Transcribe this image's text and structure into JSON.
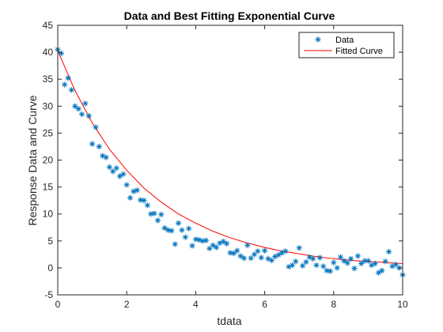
{
  "chart_data": {
    "type": "scatter",
    "title": "Data and Best Fitting Exponential Curve",
    "xlabel": "tdata",
    "ylabel": "Response Data and Curve",
    "xlim": [
      0,
      10
    ],
    "ylim": [
      -5,
      45
    ],
    "xticks": [
      0,
      2,
      4,
      6,
      8,
      10
    ],
    "yticks": [
      -5,
      0,
      5,
      10,
      15,
      20,
      25,
      30,
      35,
      40,
      45
    ],
    "grid": false,
    "legend_position": "top-right",
    "series": [
      {
        "name": "Data",
        "marker": "asterisk",
        "color": "#0072BD",
        "x": [
          0.0,
          0.1,
          0.2,
          0.3,
          0.4,
          0.5,
          0.6,
          0.7,
          0.8,
          0.9,
          1.0,
          1.1,
          1.2,
          1.3,
          1.4,
          1.5,
          1.6,
          1.7,
          1.8,
          1.9,
          2.0,
          2.1,
          2.2,
          2.3,
          2.4,
          2.5,
          2.6,
          2.7,
          2.8,
          2.9,
          3.0,
          3.1,
          3.2,
          3.3,
          3.4,
          3.5,
          3.6,
          3.7,
          3.8,
          3.9,
          4.0,
          4.1,
          4.2,
          4.3,
          4.4,
          4.5,
          4.6,
          4.7,
          4.8,
          4.9,
          5.0,
          5.1,
          5.2,
          5.3,
          5.4,
          5.5,
          5.6,
          5.7,
          5.8,
          5.9,
          6.0,
          6.1,
          6.2,
          6.3,
          6.4,
          6.5,
          6.6,
          6.7,
          6.8,
          6.9,
          7.0,
          7.1,
          7.2,
          7.3,
          7.4,
          7.5,
          7.6,
          7.7,
          7.8,
          7.9,
          8.0,
          8.1,
          8.2,
          8.3,
          8.4,
          8.5,
          8.6,
          8.7,
          8.8,
          8.9,
          9.0,
          9.1,
          9.2,
          9.3,
          9.4,
          9.5,
          9.6,
          9.7,
          9.8,
          9.9,
          10.0
        ],
        "y": [
          40.5,
          39.8,
          34.0,
          35.2,
          33.0,
          30.0,
          29.5,
          28.5,
          30.5,
          28.2,
          23.0,
          26.1,
          22.5,
          20.8,
          20.5,
          18.7,
          17.9,
          18.5,
          17.0,
          17.4,
          15.4,
          13.0,
          14.2,
          14.4,
          12.6,
          12.5,
          11.6,
          10.0,
          10.1,
          8.8,
          9.9,
          7.4,
          7.0,
          6.9,
          4.4,
          8.3,
          7.0,
          5.7,
          7.3,
          4.1,
          5.3,
          5.2,
          5.0,
          5.1,
          3.6,
          4.2,
          3.8,
          4.6,
          4.9,
          4.5,
          2.8,
          2.7,
          3.2,
          2.2,
          1.8,
          4.2,
          1.8,
          2.5,
          3.1,
          1.9,
          3.2,
          1.7,
          1.4,
          2.1,
          2.4,
          2.8,
          3.1,
          0.2,
          0.5,
          1.2,
          3.7,
          0.4,
          1.1,
          2.0,
          1.7,
          0.5,
          1.9,
          0.3,
          -0.5,
          -0.6,
          1.0,
          0.0,
          2.0,
          1.3,
          0.9,
          1.7,
          -0.1,
          2.2,
          0.8,
          1.3,
          1.3,
          0.5,
          0.8,
          -0.9,
          -0.5,
          1.2,
          3.0,
          0.3,
          0.6,
          0.0,
          -1.3
        ]
      },
      {
        "name": "Fitted Curve",
        "line": "solid",
        "color": "#FF0000",
        "x": [
          0,
          0.5,
          1,
          1.5,
          2,
          2.5,
          3,
          3.5,
          4,
          4.5,
          5,
          5.5,
          6,
          6.5,
          7,
          7.5,
          8,
          8.5,
          9,
          9.5,
          10
        ],
        "y": [
          40.3,
          32.9,
          26.9,
          22.0,
          18.1,
          14.8,
          12.2,
          10.0,
          8.3,
          6.8,
          5.6,
          4.6,
          3.8,
          3.1,
          2.6,
          2.1,
          1.7,
          1.4,
          1.2,
          1.0,
          0.8
        ]
      }
    ]
  }
}
